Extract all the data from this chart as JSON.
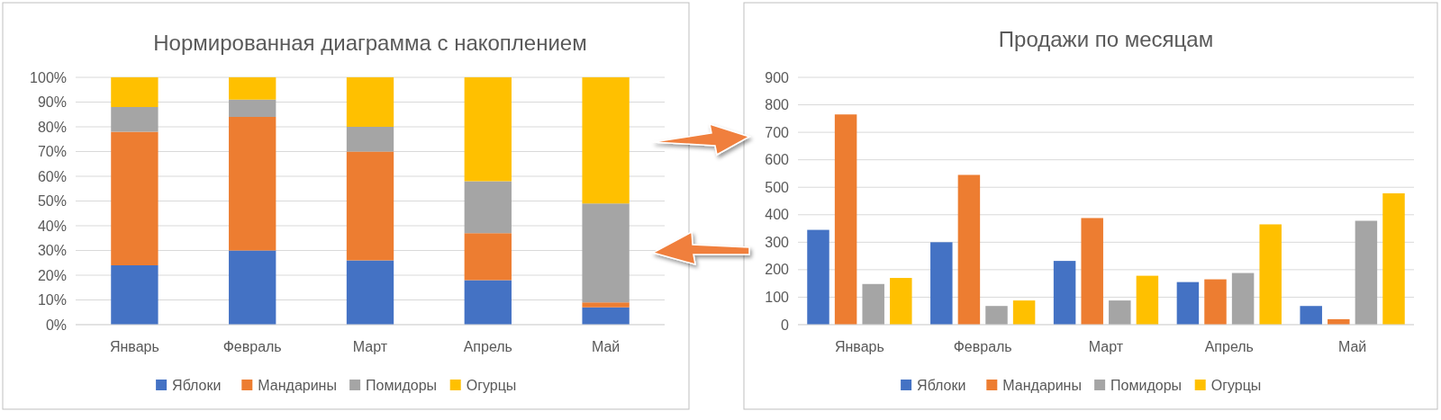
{
  "chart_data": [
    {
      "type": "bar",
      "title": "Нормированная диаграмма с накоплением",
      "stacked": true,
      "categories": [
        "Январь",
        "Февраль",
        "Март",
        "Апрель",
        "Май"
      ],
      "series": [
        {
          "name": "Яблоки",
          "color": "#4472c4",
          "values": [
            24,
            30,
            26,
            18,
            7
          ]
        },
        {
          "name": "Мандарины",
          "color": "#ed7d31",
          "values": [
            54,
            54,
            44,
            19,
            2
          ]
        },
        {
          "name": "Помидоры",
          "color": "#a5a5a5",
          "values": [
            10,
            7,
            10,
            21,
            40
          ]
        },
        {
          "name": "Огурцы",
          "color": "#ffc000",
          "values": [
            12,
            9,
            20,
            42,
            51
          ]
        }
      ],
      "ylim": [
        0,
        100
      ],
      "yticks": [
        {
          "value": 0,
          "label": "0%"
        },
        {
          "value": 10,
          "label": "10%"
        },
        {
          "value": 20,
          "label": "20%"
        },
        {
          "value": 30,
          "label": "30%"
        },
        {
          "value": 40,
          "label": "40%"
        },
        {
          "value": 50,
          "label": "50%"
        },
        {
          "value": 60,
          "label": "60%"
        },
        {
          "value": 70,
          "label": "70%"
        },
        {
          "value": 80,
          "label": "80%"
        },
        {
          "value": 90,
          "label": "90%"
        },
        {
          "value": 100,
          "label": "100%"
        }
      ],
      "grid": "y",
      "legend": "bottom"
    },
    {
      "type": "bar",
      "title": "Продажи по месяцам",
      "categories": [
        "Январь",
        "Февраль",
        "Март",
        "Апрель",
        "Май"
      ],
      "series": [
        {
          "name": "Яблоки",
          "color": "#4472c4",
          "values": [
            345,
            300,
            232,
            155,
            68
          ]
        },
        {
          "name": "Мандарины",
          "color": "#ed7d31",
          "values": [
            765,
            545,
            388,
            165,
            20
          ]
        },
        {
          "name": "Помидоры",
          "color": "#a5a5a5",
          "values": [
            148,
            68,
            88,
            188,
            378
          ]
        },
        {
          "name": "Огурцы",
          "color": "#ffc000",
          "values": [
            170,
            88,
            178,
            365,
            478
          ]
        }
      ],
      "ylim": [
        0,
        900
      ],
      "yticks": [
        0,
        100,
        200,
        300,
        400,
        500,
        600,
        700,
        800,
        900
      ],
      "grid": "y",
      "legend": "bottom"
    }
  ]
}
